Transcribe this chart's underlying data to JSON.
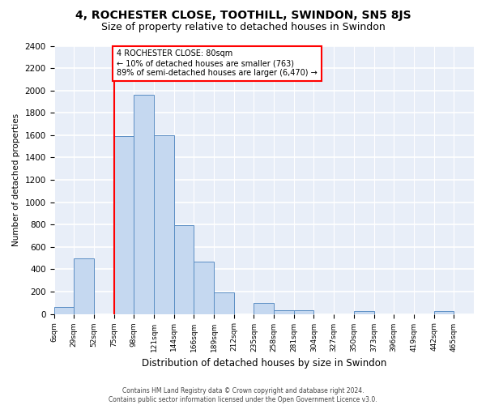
{
  "title": "4, ROCHESTER CLOSE, TOOTHILL, SWINDON, SN5 8JS",
  "subtitle": "Size of property relative to detached houses in Swindon",
  "xlabel": "Distribution of detached houses by size in Swindon",
  "ylabel": "Number of detached properties",
  "footer_line1": "Contains HM Land Registry data © Crown copyright and database right 2024.",
  "footer_line2": "Contains public sector information licensed under the Open Government Licence v3.0.",
  "annotation_line1": "4 ROCHESTER CLOSE: 80sqm",
  "annotation_line2": "← 10% of detached houses are smaller (763)",
  "annotation_line3": "89% of semi-detached houses are larger (6,470) →",
  "bar_color": "#c5d8f0",
  "bar_edge_color": "#5b8ec4",
  "red_line_x": 3,
  "bar_counts": [
    60,
    500,
    0,
    1590,
    1960,
    1600,
    795,
    470,
    195,
    0,
    95,
    35,
    30,
    0,
    0,
    25,
    0,
    0,
    0,
    25,
    0
  ],
  "xtick_labels": [
    "6sqm",
    "29sqm",
    "52sqm",
    "75sqm",
    "98sqm",
    "121sqm",
    "144sqm",
    "166sqm",
    "189sqm",
    "212sqm",
    "235sqm",
    "258sqm",
    "281sqm",
    "304sqm",
    "327sqm",
    "350sqm",
    "373sqm",
    "396sqm",
    "419sqm",
    "442sqm",
    "465sqm"
  ],
  "ylim": [
    0,
    2400
  ],
  "yticks": [
    0,
    200,
    400,
    600,
    800,
    1000,
    1200,
    1400,
    1600,
    1800,
    2000,
    2200,
    2400
  ],
  "background_color": "#e8eef8",
  "grid_color": "#d0d8e8",
  "title_fontsize": 10,
  "subtitle_fontsize": 9
}
